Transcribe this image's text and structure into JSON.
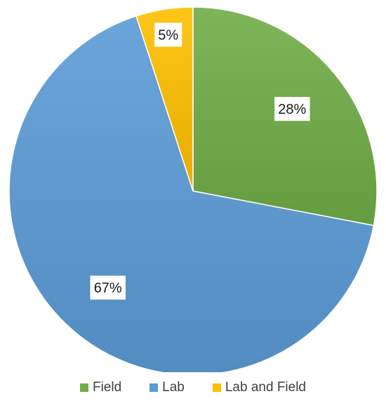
{
  "chart_data": {
    "type": "pie",
    "title": "",
    "categories": [
      "Field",
      "Lab",
      "Lab and Field"
    ],
    "values": [
      28,
      67,
      5
    ],
    "labels": [
      "28%",
      "67%",
      "5%"
    ],
    "colors": [
      "#70AD47",
      "#5B9BD5",
      "#FFC000"
    ],
    "start_angle_deg": 0,
    "direction": "clockwise",
    "legend_position": "bottom",
    "shading": "gradient"
  },
  "legend": {
    "items": [
      {
        "label": "Field",
        "color": "#70AD47"
      },
      {
        "label": "Lab",
        "color": "#5B9BD5"
      },
      {
        "label": "Lab and Field",
        "color": "#FFC000"
      }
    ]
  }
}
